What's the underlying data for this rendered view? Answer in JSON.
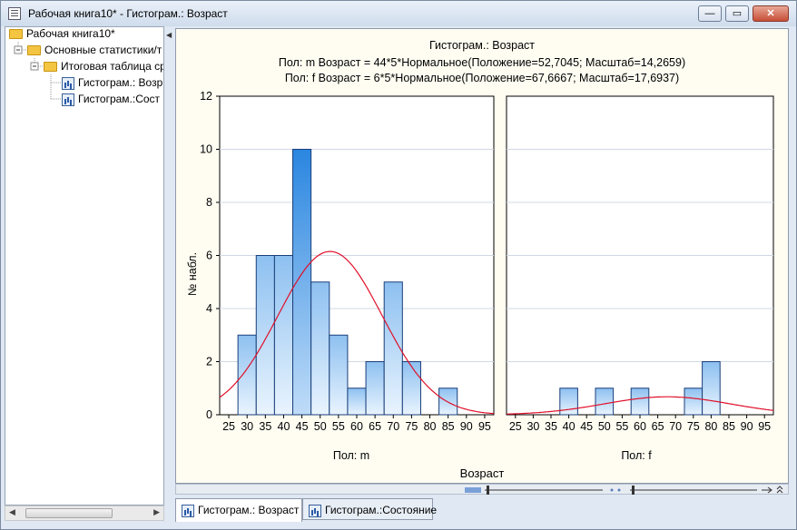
{
  "window": {
    "title": "Рабочая книга10* - Гистограм.: Возраст"
  },
  "window_buttons": {
    "minimize": "—",
    "maximize": "▭",
    "close": "✕"
  },
  "tree": {
    "items": [
      {
        "label": "Рабочая книга10*",
        "icon": "folder-open-icon",
        "level": 0
      },
      {
        "label": "Основные статистики/т",
        "icon": "folder-open-icon",
        "level": 1
      },
      {
        "label": "Итоговая таблица ср",
        "icon": "folder-open-icon",
        "level": 2
      },
      {
        "label": "Гистограм.: Возр",
        "icon": "histogram-icon",
        "level": 3
      },
      {
        "label": "Гистограм.:Сост",
        "icon": "histogram-icon",
        "level": 3
      }
    ]
  },
  "tabs": [
    {
      "label": "Гистограм.: Возраст",
      "active": true
    },
    {
      "label": "Гистограм.:Состояние",
      "active": false
    }
  ],
  "chart_data": {
    "type": "bar",
    "title": "Гистограм.: Возраст",
    "subtitles": [
      "Пол: m Возраст = 44*5*Нормальное(Положение=52,7045; Масштаб=14,2659)",
      "Пол: f Возраст = 6*5*Нормальное(Положение=67,6667; Масштаб=17,6937)"
    ],
    "xlabel": "Возраст",
    "ylabel": "№ набл.",
    "ylim": [
      0,
      12
    ],
    "yticks": [
      0,
      2,
      4,
      6,
      8,
      10,
      12
    ],
    "xlim": [
      22.5,
      97.5
    ],
    "xticks": [
      25,
      30,
      35,
      40,
      45,
      50,
      55,
      60,
      65,
      70,
      75,
      80,
      85,
      90,
      95
    ],
    "bin_width": 5,
    "grid": true,
    "colors": {
      "bar_fill_top": "#8dc0f0",
      "bar_fill_bottom": "#e9f4fe",
      "bar_highlight": "#2a86e0",
      "bar_stroke": "#1a3f7a",
      "curve": "#e0102a",
      "grid": "#cfd8e4"
    },
    "panels": [
      {
        "name": "Пол: m",
        "bin_centers": [
          30,
          35,
          40,
          45,
          50,
          55,
          60,
          65,
          70,
          75,
          80,
          85,
          90
        ],
        "counts": [
          3,
          6,
          6,
          10,
          5,
          3,
          1,
          2,
          5,
          2,
          0,
          1,
          0
        ],
        "highlighted_bin_center": 45,
        "fit": {
          "n": 44,
          "mean": 52.7045,
          "sd": 14.2659
        }
      },
      {
        "name": "Пол: f",
        "bin_centers": [
          40,
          50,
          60,
          75,
          80
        ],
        "counts": [
          1,
          1,
          1,
          1,
          2
        ],
        "fit": {
          "n": 6,
          "mean": 67.6667,
          "sd": 17.6937
        }
      }
    ]
  }
}
